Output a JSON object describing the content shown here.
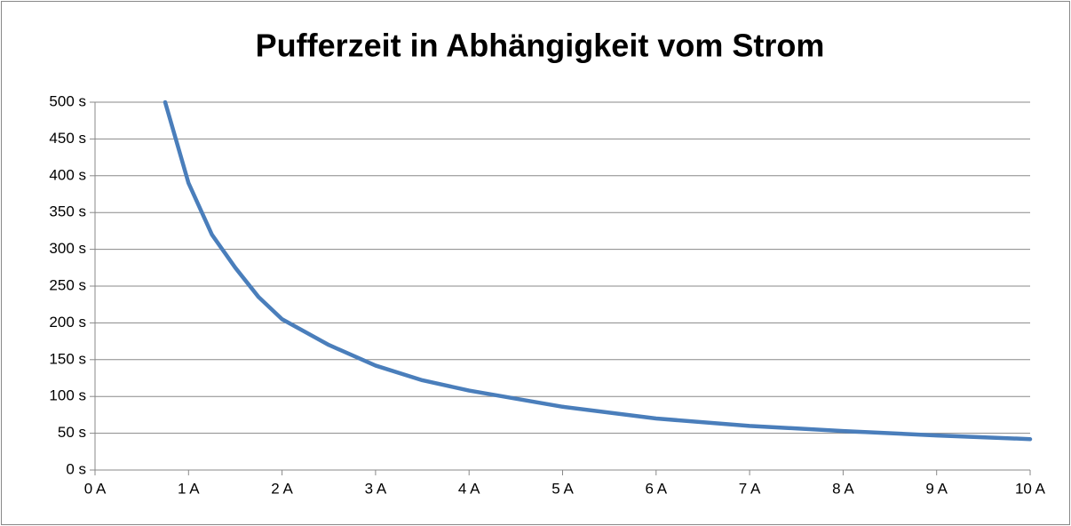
{
  "chart_data": {
    "type": "line",
    "title": "Pufferzeit in Abhängigkeit vom Strom",
    "x": [
      0.75,
      1,
      1.25,
      1.5,
      1.75,
      2,
      2.5,
      3,
      3.5,
      4,
      5,
      6,
      7,
      8,
      9,
      10
    ],
    "series": [
      {
        "name": "Pufferzeit",
        "color": "#4a7ebb",
        "values": [
          500,
          390,
          320,
          275,
          235,
          205,
          170,
          142,
          122,
          108,
          86,
          70,
          60,
          53,
          47,
          42
        ]
      }
    ],
    "xlim": [
      0,
      10
    ],
    "ylim": [
      0,
      500
    ],
    "xticks": [
      {
        "value": 0,
        "label": "0 A"
      },
      {
        "value": 1,
        "label": "1 A"
      },
      {
        "value": 2,
        "label": "2 A"
      },
      {
        "value": 3,
        "label": "3 A"
      },
      {
        "value": 4,
        "label": "4 A"
      },
      {
        "value": 5,
        "label": "5 A"
      },
      {
        "value": 6,
        "label": "6 A"
      },
      {
        "value": 7,
        "label": "7 A"
      },
      {
        "value": 8,
        "label": "8 A"
      },
      {
        "value": 9,
        "label": "9 A"
      },
      {
        "value": 10,
        "label": "10 A"
      }
    ],
    "yticks": [
      {
        "value": 0,
        "label": "0 s"
      },
      {
        "value": 50,
        "label": "50 s"
      },
      {
        "value": 100,
        "label": "100 s"
      },
      {
        "value": 150,
        "label": "150 s"
      },
      {
        "value": 200,
        "label": "200 s"
      },
      {
        "value": 250,
        "label": "250 s"
      },
      {
        "value": 300,
        "label": "300 s"
      },
      {
        "value": 350,
        "label": "350 s"
      },
      {
        "value": 400,
        "label": "400 s"
      },
      {
        "value": 450,
        "label": "450 s"
      },
      {
        "value": 500,
        "label": "500 s"
      }
    ],
    "grid": true
  }
}
